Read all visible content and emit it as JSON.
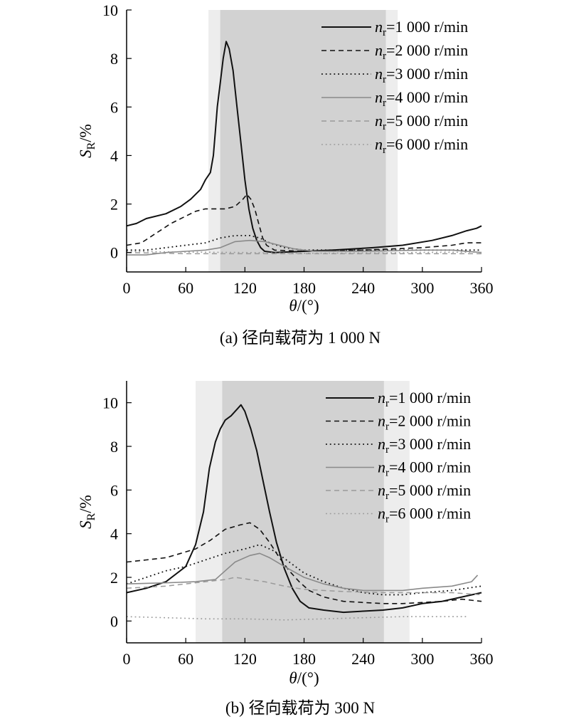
{
  "chart_data": [
    {
      "type": "line",
      "caption": "(a) 径向载荷为 1 000 N",
      "xlabel": "θ/(°)",
      "ylabel": "S_R/%",
      "xlim": [
        0,
        360
      ],
      "ylim": [
        -0.8,
        10
      ],
      "xticks": [
        0,
        60,
        120,
        180,
        240,
        300,
        360
      ],
      "yticks": [
        0,
        2,
        4,
        6,
        8,
        10
      ],
      "bands": [
        {
          "x0": 83,
          "x1": 275,
          "shade": "light"
        },
        {
          "x0": 95,
          "x1": 263,
          "shade": "dark"
        }
      ],
      "legend_position": "top-right",
      "series": [
        {
          "name": "n_r=1 000 r/min",
          "name_main": "n",
          "name_sub": "r",
          "name_rest": "=1 000 r/min",
          "color": "#111111",
          "dash": "solid",
          "width": 2,
          "points": [
            [
              0,
              1.1
            ],
            [
              10,
              1.2
            ],
            [
              20,
              1.4
            ],
            [
              40,
              1.6
            ],
            [
              55,
              1.9
            ],
            [
              65,
              2.2
            ],
            [
              75,
              2.6
            ],
            [
              80,
              3.0
            ],
            [
              85,
              3.3
            ],
            [
              88,
              4.0
            ],
            [
              90,
              5.0
            ],
            [
              92,
              6.0
            ],
            [
              95,
              7.0
            ],
            [
              98,
              8.0
            ],
            [
              101,
              8.7
            ],
            [
              104,
              8.4
            ],
            [
              108,
              7.5
            ],
            [
              112,
              6.0
            ],
            [
              116,
              4.5
            ],
            [
              120,
              3.0
            ],
            [
              124,
              1.8
            ],
            [
              128,
              1.0
            ],
            [
              132,
              0.5
            ],
            [
              136,
              0.2
            ],
            [
              140,
              0.05
            ],
            [
              150,
              0.0
            ],
            [
              180,
              0.05
            ],
            [
              210,
              0.1
            ],
            [
              250,
              0.2
            ],
            [
              280,
              0.3
            ],
            [
              310,
              0.5
            ],
            [
              330,
              0.7
            ],
            [
              345,
              0.9
            ],
            [
              355,
              1.0
            ],
            [
              360,
              1.1
            ]
          ]
        },
        {
          "name": "n_r=2 000 r/min",
          "name_main": "n",
          "name_sub": "r",
          "name_rest": "=2 000 r/min",
          "color": "#111111",
          "dash": "7,5",
          "width": 1.6,
          "points": [
            [
              0,
              0.3
            ],
            [
              15,
              0.4
            ],
            [
              30,
              0.8
            ],
            [
              45,
              1.2
            ],
            [
              60,
              1.5
            ],
            [
              70,
              1.7
            ],
            [
              80,
              1.8
            ],
            [
              100,
              1.8
            ],
            [
              110,
              1.9
            ],
            [
              118,
              2.2
            ],
            [
              122,
              2.4
            ],
            [
              126,
              2.2
            ],
            [
              130,
              1.8
            ],
            [
              134,
              1.2
            ],
            [
              138,
              0.6
            ],
            [
              142,
              0.3
            ],
            [
              150,
              0.1
            ],
            [
              180,
              0.05
            ],
            [
              240,
              0.1
            ],
            [
              300,
              0.2
            ],
            [
              330,
              0.3
            ],
            [
              345,
              0.4
            ],
            [
              360,
              0.4
            ]
          ]
        },
        {
          "name": "n_r=3 000 r/min",
          "name_main": "n",
          "name_sub": "r",
          "name_rest": "=3 000 r/min",
          "color": "#111111",
          "dash": "1.8,4",
          "width": 1.8,
          "points": [
            [
              0,
              0.1
            ],
            [
              20,
              0.1
            ],
            [
              40,
              0.2
            ],
            [
              60,
              0.3
            ],
            [
              80,
              0.4
            ],
            [
              95,
              0.6
            ],
            [
              110,
              0.7
            ],
            [
              125,
              0.7
            ],
            [
              135,
              0.6
            ],
            [
              145,
              0.4
            ],
            [
              160,
              0.2
            ],
            [
              180,
              0.1
            ],
            [
              240,
              0.1
            ],
            [
              300,
              0.1
            ],
            [
              360,
              0.1
            ]
          ]
        },
        {
          "name": "n_r=4 000 r/min",
          "name_main": "n",
          "name_sub": "r",
          "name_rest": "=4 000 r/min",
          "color": "#8a8a8a",
          "dash": "solid",
          "width": 1.6,
          "points": [
            [
              0,
              -0.1
            ],
            [
              20,
              -0.1
            ],
            [
              40,
              0.0
            ],
            [
              60,
              0.05
            ],
            [
              80,
              0.1
            ],
            [
              95,
              0.2
            ],
            [
              110,
              0.45
            ],
            [
              125,
              0.5
            ],
            [
              140,
              0.45
            ],
            [
              155,
              0.3
            ],
            [
              170,
              0.15
            ],
            [
              190,
              0.05
            ],
            [
              240,
              0.05
            ],
            [
              300,
              0.1
            ],
            [
              330,
              0.1
            ],
            [
              360,
              0.0
            ]
          ]
        },
        {
          "name": "n_r=5 000 r/min",
          "name_main": "n",
          "name_sub": "r",
          "name_rest": "=5 000 r/min",
          "color": "#9a9a9a",
          "dash": "7,5",
          "width": 1.5,
          "points": [
            [
              0,
              0.0
            ],
            [
              60,
              -0.05
            ],
            [
              120,
              -0.05
            ],
            [
              180,
              -0.05
            ],
            [
              240,
              -0.05
            ],
            [
              300,
              -0.05
            ],
            [
              360,
              -0.05
            ]
          ]
        },
        {
          "name": "n_r=6 000 r/min",
          "name_main": "n",
          "name_sub": "r",
          "name_rest": "=6 000 r/min",
          "color": "#9a9a9a",
          "dash": "1.8,4",
          "width": 1.6,
          "points": [
            [
              0,
              0.05
            ],
            [
              60,
              0.02
            ],
            [
              120,
              0.0
            ],
            [
              180,
              -0.03
            ],
            [
              240,
              -0.02
            ],
            [
              300,
              0.0
            ],
            [
              360,
              0.02
            ]
          ]
        }
      ]
    },
    {
      "type": "line",
      "caption": "(b) 径向载荷为 300 N",
      "xlabel": "θ/(°)",
      "ylabel": "S_R/%",
      "xlim": [
        0,
        360
      ],
      "ylim": [
        -1,
        11
      ],
      "xticks": [
        0,
        60,
        120,
        180,
        240,
        300,
        360
      ],
      "yticks": [
        0,
        2,
        4,
        6,
        8,
        10
      ],
      "bands": [
        {
          "x0": 70,
          "x1": 287,
          "shade": "light"
        },
        {
          "x0": 97,
          "x1": 261,
          "shade": "dark"
        }
      ],
      "legend_position": "top-right",
      "series": [
        {
          "name": "n_r=1 000 r/min",
          "name_main": "n",
          "name_sub": "r",
          "name_rest": "=1 000 r/min",
          "color": "#111111",
          "dash": "solid",
          "width": 2,
          "points": [
            [
              0,
              1.3
            ],
            [
              20,
              1.5
            ],
            [
              40,
              1.8
            ],
            [
              60,
              2.5
            ],
            [
              70,
              3.5
            ],
            [
              78,
              5.0
            ],
            [
              84,
              7.0
            ],
            [
              90,
              8.2
            ],
            [
              95,
              8.8
            ],
            [
              100,
              9.2
            ],
            [
              106,
              9.4
            ],
            [
              112,
              9.7
            ],
            [
              116,
              9.9
            ],
            [
              120,
              9.6
            ],
            [
              126,
              8.8
            ],
            [
              132,
              7.8
            ],
            [
              138,
              6.5
            ],
            [
              145,
              5.0
            ],
            [
              152,
              3.6
            ],
            [
              160,
              2.4
            ],
            [
              168,
              1.5
            ],
            [
              176,
              0.9
            ],
            [
              185,
              0.6
            ],
            [
              200,
              0.5
            ],
            [
              220,
              0.4
            ],
            [
              240,
              0.45
            ],
            [
              260,
              0.5
            ],
            [
              280,
              0.6
            ],
            [
              300,
              0.8
            ],
            [
              320,
              0.9
            ],
            [
              340,
              1.1
            ],
            [
              360,
              1.3
            ]
          ]
        },
        {
          "name": "n_r=2 000 r/min",
          "name_main": "n",
          "name_sub": "r",
          "name_rest": "=2 000 r/min",
          "color": "#111111",
          "dash": "7,5",
          "width": 1.6,
          "points": [
            [
              0,
              2.7
            ],
            [
              20,
              2.8
            ],
            [
              40,
              2.9
            ],
            [
              55,
              3.1
            ],
            [
              70,
              3.3
            ],
            [
              85,
              3.7
            ],
            [
              100,
              4.2
            ],
            [
              115,
              4.4
            ],
            [
              125,
              4.5
            ],
            [
              135,
              4.2
            ],
            [
              145,
              3.6
            ],
            [
              155,
              2.9
            ],
            [
              165,
              2.3
            ],
            [
              175,
              1.8
            ],
            [
              185,
              1.4
            ],
            [
              200,
              1.1
            ],
            [
              220,
              0.9
            ],
            [
              240,
              0.85
            ],
            [
              260,
              0.8
            ],
            [
              280,
              0.8
            ],
            [
              300,
              0.85
            ],
            [
              320,
              0.9
            ],
            [
              340,
              1.0
            ],
            [
              360,
              0.9
            ]
          ]
        },
        {
          "name": "n_r=3 000 r/min",
          "name_main": "n",
          "name_sub": "r",
          "name_rest": "=3 000 r/min",
          "color": "#111111",
          "dash": "1.8,4",
          "width": 1.8,
          "points": [
            [
              0,
              1.7
            ],
            [
              20,
              2.0
            ],
            [
              40,
              2.3
            ],
            [
              60,
              2.5
            ],
            [
              80,
              2.8
            ],
            [
              100,
              3.1
            ],
            [
              120,
              3.3
            ],
            [
              135,
              3.5
            ],
            [
              150,
              3.2
            ],
            [
              165,
              2.7
            ],
            [
              180,
              2.2
            ],
            [
              200,
              1.8
            ],
            [
              220,
              1.5
            ],
            [
              240,
              1.3
            ],
            [
              260,
              1.2
            ],
            [
              280,
              1.2
            ],
            [
              300,
              1.3
            ],
            [
              330,
              1.4
            ],
            [
              360,
              1.6
            ]
          ]
        },
        {
          "name": "n_r=4 000 r/min",
          "name_main": "n",
          "name_sub": "r",
          "name_rest": "=4 000 r/min",
          "color": "#8a8a8a",
          "dash": "solid",
          "width": 1.6,
          "points": [
            [
              0,
              1.7
            ],
            [
              40,
              1.75
            ],
            [
              70,
              1.8
            ],
            [
              90,
              1.9
            ],
            [
              100,
              2.3
            ],
            [
              110,
              2.7
            ],
            [
              125,
              3.0
            ],
            [
              135,
              3.1
            ],
            [
              145,
              2.9
            ],
            [
              160,
              2.5
            ],
            [
              180,
              2.0
            ],
            [
              200,
              1.7
            ],
            [
              220,
              1.5
            ],
            [
              240,
              1.4
            ],
            [
              260,
              1.4
            ],
            [
              280,
              1.4
            ],
            [
              300,
              1.5
            ],
            [
              330,
              1.6
            ],
            [
              350,
              1.8
            ],
            [
              356,
              2.1
            ]
          ]
        },
        {
          "name": "n_r=5 000 r/min",
          "name_main": "n",
          "name_sub": "r",
          "name_rest": "=5 000 r/min",
          "color": "#9a9a9a",
          "dash": "7,5",
          "width": 1.5,
          "points": [
            [
              0,
              1.5
            ],
            [
              40,
              1.6
            ],
            [
              80,
              1.8
            ],
            [
              100,
              1.9
            ],
            [
              110,
              2.0
            ],
            [
              125,
              1.9
            ],
            [
              140,
              1.8
            ],
            [
              160,
              1.6
            ],
            [
              180,
              1.45
            ],
            [
              220,
              1.35
            ],
            [
              260,
              1.3
            ],
            [
              300,
              1.3
            ],
            [
              330,
              1.3
            ],
            [
              360,
              1.2
            ]
          ]
        },
        {
          "name": "n_r=6 000 r/min",
          "name_main": "n",
          "name_sub": "r",
          "name_rest": "=6 000 r/min",
          "color": "#9a9a9a",
          "dash": "1.8,4",
          "width": 1.6,
          "points": [
            [
              0,
              0.2
            ],
            [
              40,
              0.15
            ],
            [
              80,
              0.1
            ],
            [
              120,
              0.1
            ],
            [
              160,
              0.05
            ],
            [
              200,
              0.1
            ],
            [
              240,
              0.15
            ],
            [
              280,
              0.2
            ],
            [
              320,
              0.2
            ],
            [
              345,
              0.2
            ]
          ]
        }
      ]
    }
  ]
}
